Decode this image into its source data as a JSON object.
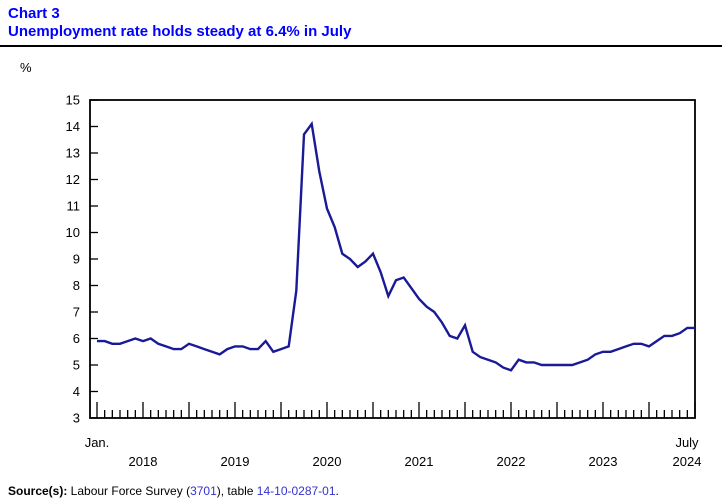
{
  "header": {
    "chart_label": "Chart 3",
    "title": "Unemployment rate holds steady at 6.4% in July"
  },
  "y_axis": {
    "unit_label": "%",
    "ticks": [
      15,
      14,
      13,
      12,
      11,
      10,
      9,
      8,
      7,
      6,
      5,
      4,
      3
    ]
  },
  "x_axis": {
    "start_label": "Jan.",
    "end_label": "July",
    "years": [
      "2018",
      "2019",
      "2020",
      "2021",
      "2022",
      "2023",
      "2024"
    ]
  },
  "chart_data": {
    "type": "line",
    "title": "Unemployment rate holds steady at 6.4% in July",
    "ylabel": "%",
    "x_start": "2018-01",
    "x_end": "2024-07",
    "x_frequency": "monthly",
    "ylim": [
      3,
      15
    ],
    "grid": false,
    "legend": "none",
    "line_color": "#1a1a96",
    "series": [
      {
        "name": "Unemployment rate (%)",
        "values": [
          5.9,
          5.9,
          5.8,
          5.8,
          5.9,
          6.0,
          5.9,
          6.0,
          5.8,
          5.7,
          5.6,
          5.6,
          5.8,
          5.7,
          5.6,
          5.5,
          5.4,
          5.6,
          5.7,
          5.7,
          5.6,
          5.6,
          5.9,
          5.5,
          5.6,
          5.7,
          7.8,
          13.7,
          14.1,
          12.3,
          10.9,
          10.2,
          9.2,
          9.0,
          8.7,
          8.9,
          9.2,
          8.5,
          7.6,
          8.2,
          8.3,
          7.9,
          7.5,
          7.2,
          7.0,
          6.6,
          6.1,
          6.0,
          6.5,
          5.5,
          5.3,
          5.2,
          5.1,
          4.9,
          4.8,
          5.2,
          5.1,
          5.1,
          5.0,
          5.0,
          5.0,
          5.0,
          5.0,
          5.1,
          5.2,
          5.4,
          5.5,
          5.5,
          5.6,
          5.7,
          5.8,
          5.8,
          5.7,
          5.9,
          6.1,
          6.1,
          6.2,
          6.4,
          6.4
        ]
      }
    ]
  },
  "footer": {
    "source_label": "Source(s):",
    "text_before_link1": " Labour Force Survey (",
    "link1": "3701",
    "text_between_links": "), table ",
    "link2": "14-10-0287-01",
    "suffix": "."
  }
}
